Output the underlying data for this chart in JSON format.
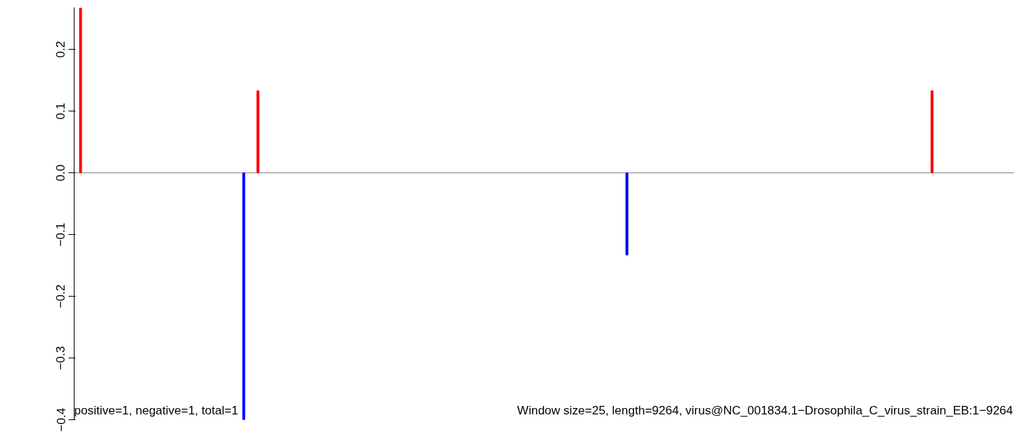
{
  "chart_data": {
    "type": "bar",
    "categories": [
      null,
      null,
      null,
      null,
      null,
      null,
      null,
      null,
      null,
      null,
      null,
      null,
      null,
      null,
      null,
      null,
      null,
      null,
      null,
      null,
      null,
      null,
      null,
      null,
      null,
      null,
      null,
      null,
      null,
      null,
      null,
      null,
      null,
      null,
      null,
      null,
      null,
      null,
      null,
      null,
      null,
      null,
      null,
      null,
      null,
      null,
      null,
      null,
      null,
      null,
      null,
      null,
      null,
      null,
      null,
      null,
      null,
      null,
      null,
      null,
      null,
      null,
      null,
      null,
      null,
      null,
      null,
      null,
      null,
      null,
      null,
      null,
      null,
      null,
      null,
      null,
      null,
      null,
      null,
      null,
      null,
      null,
      null,
      null,
      null,
      null,
      null,
      null,
      null,
      null,
      null,
      null,
      null,
      null,
      null,
      null,
      null,
      null,
      null,
      null,
      null,
      null,
      null,
      null,
      null,
      null,
      null,
      null,
      null,
      null,
      null,
      null,
      null,
      null,
      null,
      null,
      null,
      null,
      null,
      null,
      null,
      null,
      null,
      null,
      null,
      null,
      null,
      null,
      null,
      null,
      null,
      null
    ],
    "values": [
      0.267,
      null,
      null,
      null,
      null,
      null,
      null,
      null,
      null,
      null,
      null,
      null,
      null,
      null,
      null,
      null,
      null,
      null,
      null,
      null,
      null,
      null,
      null,
      -0.4,
      null,
      0.133,
      null,
      null,
      null,
      null,
      null,
      null,
      null,
      null,
      null,
      null,
      null,
      null,
      null,
      null,
      null,
      null,
      null,
      null,
      null,
      null,
      null,
      null,
      null,
      null,
      null,
      null,
      null,
      null,
      null,
      null,
      null,
      null,
      null,
      null,
      null,
      null,
      null,
      null,
      null,
      null,
      null,
      null,
      null,
      null,
      null,
      null,
      null,
      null,
      null,
      null,
      null,
      -0.133,
      null,
      null,
      null,
      null,
      null,
      null,
      null,
      null,
      null,
      null,
      null,
      null,
      null,
      null,
      null,
      null,
      null,
      null,
      null,
      null,
      null,
      null,
      null,
      null,
      null,
      null,
      null,
      null,
      null,
      null,
      null,
      null,
      null,
      null,
      null,
      null,
      null,
      null,
      null,
      null,
      null,
      null,
      0.133,
      null,
      null,
      null,
      null,
      null,
      null,
      null,
      null,
      null,
      null,
      null
    ],
    "colors": [
      "#ff0000",
      null,
      null,
      null,
      null,
      null,
      null,
      null,
      null,
      null,
      null,
      null,
      null,
      null,
      null,
      null,
      null,
      null,
      null,
      null,
      null,
      null,
      null,
      "#0000ff",
      null,
      "#ff0000",
      null,
      null,
      null,
      null,
      null,
      null,
      null,
      null,
      null,
      null,
      null,
      null,
      null,
      null,
      null,
      null,
      null,
      null,
      null,
      null,
      null,
      null,
      null,
      null,
      null,
      null,
      null,
      null,
      null,
      null,
      null,
      null,
      null,
      null,
      null,
      null,
      null,
      null,
      null,
      null,
      null,
      null,
      null,
      null,
      null,
      null,
      null,
      null,
      null,
      null,
      null,
      "#0000ff",
      null,
      null,
      null,
      null,
      null,
      null,
      null,
      null,
      null,
      null,
      null,
      null,
      null,
      null,
      null,
      null,
      null,
      null,
      null,
      null,
      null,
      null,
      null,
      null,
      null,
      null,
      null,
      null,
      null,
      null,
      null,
      null,
      null,
      null,
      null,
      null,
      null,
      null,
      null,
      null,
      null,
      null,
      "#ff0000",
      null,
      null,
      null,
      null,
      null,
      null,
      null,
      null,
      null,
      null,
      null
    ],
    "ylim": [
      -0.4,
      0.268
    ],
    "yticks": [
      {
        "value": -0.4,
        "label": "−0.4"
      },
      {
        "value": -0.3,
        "label": "−0.3"
      },
      {
        "value": -0.2,
        "label": "−0.2"
      },
      {
        "value": -0.1,
        "label": "−0.1"
      },
      {
        "value": 0.0,
        "label": "0.0"
      },
      {
        "value": 0.1,
        "label": "0.1"
      },
      {
        "value": 0.2,
        "label": "0.2"
      }
    ],
    "tick_labels": "y",
    "grid": false,
    "ref_lines": [
      {
        "axis": "y",
        "value": 0,
        "color": "#808080"
      }
    ],
    "annotations": [
      "positive=1, negative=1, total=1",
      "Window size=25, length=9264, virus@NC_001834.1−Drosophila_C_virus_strain_EB:1−9264"
    ]
  }
}
